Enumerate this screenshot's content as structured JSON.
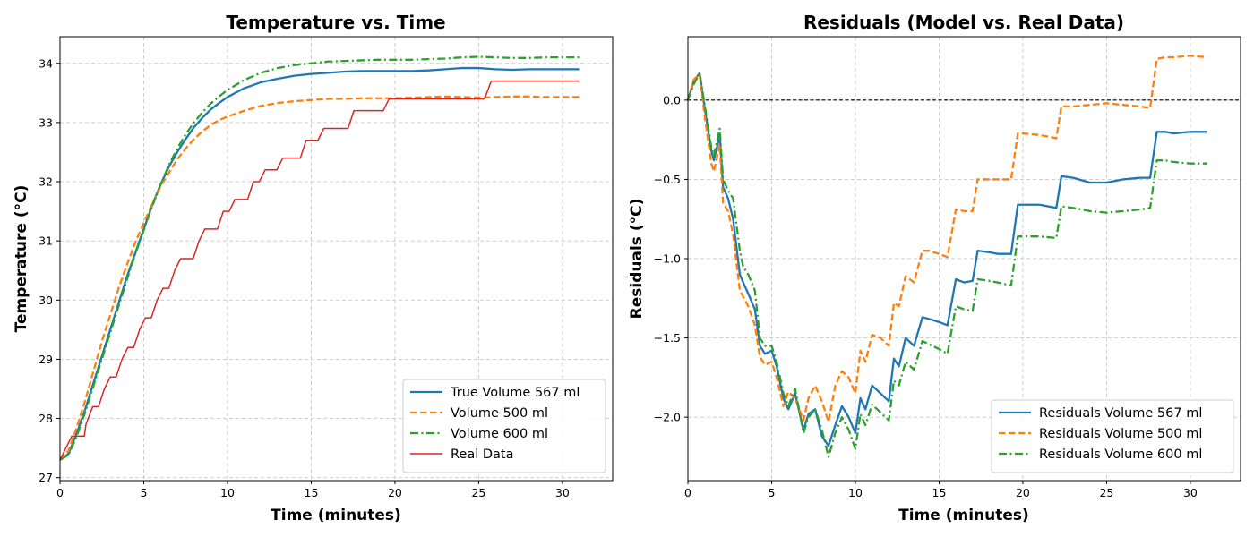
{
  "chart_data": [
    {
      "type": "line",
      "title": "Temperature vs. Time",
      "xlabel": "Time (minutes)",
      "ylabel": "Temperature (°C)",
      "xlim": [
        0,
        33
      ],
      "ylim": [
        26.95,
        34.45
      ],
      "xticks": [
        0,
        5,
        10,
        15,
        20,
        25,
        30
      ],
      "yticks": [
        27,
        28,
        29,
        30,
        31,
        32,
        33,
        34
      ],
      "grid": true,
      "legend_position": "lower-right",
      "series": [
        {
          "name": "True Volume 567 ml",
          "color": "#1f77b4",
          "style": "solid",
          "x": [
            0,
            0.5,
            1,
            1.5,
            2,
            2.5,
            3,
            3.5,
            4,
            4.5,
            5,
            5.5,
            6,
            6.5,
            7,
            7.5,
            8,
            8.5,
            9,
            9.5,
            10,
            11,
            12,
            13,
            14,
            15,
            16,
            17,
            18,
            19,
            20,
            21,
            22,
            23,
            24,
            25,
            26,
            27,
            28,
            29,
            30,
            31
          ],
          "y": [
            27.3,
            27.4,
            27.75,
            28.15,
            28.6,
            29.05,
            29.5,
            29.95,
            30.4,
            30.8,
            31.2,
            31.6,
            31.95,
            32.25,
            32.5,
            32.72,
            32.92,
            33.08,
            33.22,
            33.33,
            33.43,
            33.58,
            33.68,
            33.74,
            33.79,
            33.82,
            33.84,
            33.86,
            33.87,
            33.87,
            33.87,
            33.87,
            33.88,
            33.9,
            33.92,
            33.92,
            33.9,
            33.89,
            33.9,
            33.9,
            33.9,
            33.9
          ]
        },
        {
          "name": "Volume 500 ml",
          "color": "#ff7f0e",
          "style": "dashed",
          "x": [
            0,
            0.5,
            1,
            1.5,
            2,
            2.5,
            3,
            3.5,
            4,
            4.5,
            5,
            5.5,
            6,
            6.5,
            7,
            7.5,
            8,
            8.5,
            9,
            9.5,
            10,
            11,
            12,
            13,
            14,
            15,
            16,
            17,
            18,
            19,
            20,
            21,
            22,
            23,
            24,
            25,
            26,
            27,
            28,
            29,
            30,
            31
          ],
          "y": [
            27.3,
            27.45,
            27.85,
            28.3,
            28.8,
            29.3,
            29.75,
            30.2,
            30.6,
            30.98,
            31.3,
            31.62,
            31.92,
            32.15,
            32.38,
            32.56,
            32.72,
            32.85,
            32.96,
            33.04,
            33.1,
            33.2,
            33.28,
            33.33,
            33.36,
            33.38,
            33.4,
            33.4,
            33.41,
            33.41,
            33.41,
            33.42,
            33.43,
            33.44,
            33.43,
            33.42,
            33.43,
            33.44,
            33.44,
            33.43,
            33.43,
            33.43
          ]
        },
        {
          "name": "Volume 600 ml",
          "color": "#2ca02c",
          "style": "dashdot",
          "x": [
            0,
            0.5,
            1,
            1.5,
            2,
            2.5,
            3,
            3.5,
            4,
            4.5,
            5,
            5.5,
            6,
            6.5,
            7,
            7.5,
            8,
            8.5,
            9,
            9.5,
            10,
            11,
            12,
            13,
            14,
            15,
            16,
            17,
            18,
            19,
            20,
            21,
            22,
            23,
            24,
            25,
            26,
            27,
            28,
            29,
            30,
            31
          ],
          "y": [
            27.3,
            27.38,
            27.7,
            28.1,
            28.55,
            29.0,
            29.45,
            29.9,
            30.35,
            30.78,
            31.18,
            31.58,
            31.95,
            32.28,
            32.56,
            32.8,
            33.0,
            33.17,
            33.32,
            33.44,
            33.55,
            33.72,
            33.84,
            33.92,
            33.97,
            34.0,
            34.03,
            34.04,
            34.05,
            34.06,
            34.06,
            34.06,
            34.07,
            34.08,
            34.1,
            34.11,
            34.1,
            34.09,
            34.09,
            34.1,
            34.1,
            34.1
          ]
        },
        {
          "name": "Real Data",
          "color": "#d62728",
          "style": "solid-thin",
          "x": [
            0,
            0.7,
            1.45,
            1.55,
            1.95,
            2.3,
            2.65,
            3.0,
            3.35,
            3.7,
            4.05,
            4.4,
            4.75,
            5.1,
            5.45,
            5.8,
            6.15,
            6.5,
            6.85,
            7.2,
            7.6,
            7.95,
            8.3,
            8.65,
            9.05,
            9.4,
            9.75,
            10.1,
            10.45,
            10.85,
            11.2,
            11.55,
            11.9,
            12.25,
            12.6,
            12.95,
            13.3,
            13.65,
            14.0,
            14.35,
            14.7,
            15.05,
            15.4,
            15.75,
            16.1,
            16.5,
            16.85,
            17.2,
            17.55,
            17.9,
            18.25,
            18.6,
            18.95,
            19.3,
            19.65,
            20.05,
            20.4,
            20.75,
            21.1,
            21.45,
            21.8,
            22.15,
            22.55,
            22.9,
            23.25,
            23.6,
            23.95,
            24.3,
            24.65,
            25.0,
            25.35,
            25.75,
            26.1,
            26.45,
            26.8,
            27.15,
            27.5,
            27.85,
            28.2,
            28.55,
            28.9,
            29.25,
            29.6,
            29.95,
            30.3,
            30.65,
            31.0
          ],
          "y": [
            27.3,
            27.7,
            27.7,
            27.9,
            28.2,
            28.2,
            28.5,
            28.7,
            28.7,
            29.0,
            29.2,
            29.2,
            29.5,
            29.7,
            29.7,
            30.0,
            30.2,
            30.2,
            30.5,
            30.7,
            30.7,
            30.7,
            31.0,
            31.2,
            31.2,
            31.2,
            31.5,
            31.5,
            31.7,
            31.7,
            31.7,
            32.0,
            32.0,
            32.2,
            32.2,
            32.2,
            32.4,
            32.4,
            32.4,
            32.4,
            32.7,
            32.7,
            32.7,
            32.9,
            32.9,
            32.9,
            32.9,
            32.9,
            33.2,
            33.2,
            33.2,
            33.2,
            33.2,
            33.2,
            33.4,
            33.4,
            33.4,
            33.4,
            33.4,
            33.4,
            33.4,
            33.4,
            33.4,
            33.4,
            33.4,
            33.4,
            33.4,
            33.4,
            33.4,
            33.4,
            33.4,
            33.7,
            33.7,
            33.7,
            33.7,
            33.7,
            33.7,
            33.7,
            33.7,
            33.7,
            33.7,
            33.7,
            33.7,
            33.7,
            33.7,
            33.7,
            33.7
          ]
        }
      ]
    },
    {
      "type": "line",
      "title": "Residuals (Model vs. Real Data)",
      "xlabel": "Time (minutes)",
      "ylabel": "Residuals (°C)",
      "xlim": [
        0,
        33
      ],
      "ylim": [
        -2.4,
        0.4
      ],
      "xticks": [
        0,
        5,
        10,
        15,
        20,
        25,
        30
      ],
      "yticks": [
        -2.0,
        -1.5,
        -1.0,
        -0.5,
        0.0
      ],
      "ytick_labels": [
        "−2.0",
        "−1.5",
        "−1.0",
        "−0.5",
        "0.0"
      ],
      "reference_line": 0.0,
      "grid": true,
      "legend_position": "lower-right",
      "series": [
        {
          "name": "Residuals Volume 567 ml",
          "color": "#1f77b4",
          "style": "solid",
          "x": [
            0,
            0.35,
            0.7,
            1.0,
            1.4,
            1.55,
            1.9,
            2.1,
            2.4,
            2.7,
            3.1,
            3.3,
            3.6,
            4.0,
            4.3,
            4.6,
            5.0,
            5.3,
            5.7,
            6.0,
            6.4,
            6.9,
            7.2,
            7.6,
            8.0,
            8.4,
            8.8,
            9.2,
            9.6,
            10.0,
            10.3,
            10.6,
            11.0,
            11.5,
            12.0,
            12.3,
            12.6,
            13.0,
            13.5,
            14.0,
            14.4,
            15.0,
            15.5,
            16.0,
            16.5,
            17.0,
            17.3,
            18.0,
            18.5,
            19.3,
            19.7,
            20.0,
            21.0,
            22.0,
            22.3,
            23.0,
            24.0,
            25.0,
            26.0,
            27.0,
            27.6,
            28.0,
            28.5,
            29.0,
            30.0,
            31.0
          ],
          "y": [
            0.0,
            0.12,
            0.17,
            -0.05,
            -0.32,
            -0.38,
            -0.22,
            -0.55,
            -0.62,
            -0.75,
            -1.1,
            -1.15,
            -1.22,
            -1.32,
            -1.55,
            -1.6,
            -1.58,
            -1.68,
            -1.88,
            -1.95,
            -1.85,
            -2.08,
            -1.98,
            -1.95,
            -2.12,
            -2.18,
            -2.05,
            -1.93,
            -2.0,
            -2.1,
            -1.88,
            -1.95,
            -1.8,
            -1.85,
            -1.9,
            -1.63,
            -1.68,
            -1.5,
            -1.55,
            -1.37,
            -1.38,
            -1.4,
            -1.42,
            -1.13,
            -1.15,
            -1.14,
            -0.95,
            -0.96,
            -0.97,
            -0.97,
            -0.66,
            -0.66,
            -0.66,
            -0.68,
            -0.48,
            -0.49,
            -0.52,
            -0.52,
            -0.5,
            -0.49,
            -0.49,
            -0.2,
            -0.2,
            -0.21,
            -0.2,
            -0.2
          ]
        },
        {
          "name": "Residuals Volume 500 ml",
          "color": "#ff7f0e",
          "style": "dashed",
          "x": [
            0,
            0.35,
            0.7,
            1.0,
            1.4,
            1.55,
            1.9,
            2.1,
            2.4,
            2.7,
            3.1,
            3.3,
            3.6,
            4.0,
            4.3,
            4.6,
            5.0,
            5.3,
            5.7,
            6.0,
            6.4,
            6.9,
            7.2,
            7.6,
            8.0,
            8.4,
            8.8,
            9.2,
            9.6,
            10.0,
            10.3,
            10.6,
            11.0,
            11.5,
            12.0,
            12.3,
            12.6,
            13.0,
            13.5,
            14.0,
            14.4,
            15.0,
            15.5,
            16.0,
            16.5,
            17.0,
            17.3,
            18.0,
            18.5,
            19.3,
            19.7,
            20.0,
            21.0,
            22.0,
            22.3,
            23.0,
            24.0,
            25.0,
            26.0,
            27.0,
            27.6,
            28.0,
            28.5,
            29.0,
            30.0,
            31.0
          ],
          "y": [
            0.0,
            0.13,
            0.16,
            -0.1,
            -0.4,
            -0.45,
            -0.28,
            -0.65,
            -0.7,
            -0.85,
            -1.2,
            -1.24,
            -1.3,
            -1.42,
            -1.62,
            -1.67,
            -1.65,
            -1.75,
            -1.93,
            -1.84,
            -1.88,
            -2.02,
            -1.88,
            -1.8,
            -1.9,
            -2.03,
            -1.8,
            -1.71,
            -1.75,
            -1.85,
            -1.58,
            -1.65,
            -1.48,
            -1.5,
            -1.55,
            -1.28,
            -1.3,
            -1.11,
            -1.15,
            -0.95,
            -0.95,
            -0.97,
            -0.99,
            -0.69,
            -0.7,
            -0.7,
            -0.5,
            -0.5,
            -0.5,
            -0.5,
            -0.21,
            -0.21,
            -0.22,
            -0.24,
            -0.04,
            -0.04,
            -0.03,
            -0.02,
            -0.03,
            -0.04,
            -0.05,
            0.26,
            0.27,
            0.27,
            0.28,
            0.27
          ]
        },
        {
          "name": "Residuals Volume 600 ml",
          "color": "#2ca02c",
          "style": "dashdot",
          "x": [
            0,
            0.35,
            0.7,
            1.0,
            1.4,
            1.55,
            1.9,
            2.1,
            2.4,
            2.7,
            3.1,
            3.3,
            3.6,
            4.0,
            4.3,
            4.6,
            5.0,
            5.3,
            5.7,
            6.0,
            6.4,
            6.9,
            7.2,
            7.6,
            8.0,
            8.4,
            8.8,
            9.2,
            9.6,
            10.0,
            10.3,
            10.6,
            11.0,
            11.5,
            12.0,
            12.3,
            12.6,
            13.0,
            13.5,
            14.0,
            14.4,
            15.0,
            15.5,
            16.0,
            16.5,
            17.0,
            17.3,
            18.0,
            18.5,
            19.3,
            19.7,
            20.0,
            21.0,
            22.0,
            22.3,
            23.0,
            24.0,
            25.0,
            26.0,
            27.0,
            27.6,
            28.0,
            28.5,
            29.0,
            30.0,
            31.0
          ],
          "y": [
            0.0,
            0.1,
            0.17,
            -0.03,
            -0.3,
            -0.35,
            -0.18,
            -0.5,
            -0.57,
            -0.62,
            -0.95,
            -1.05,
            -1.1,
            -1.2,
            -1.5,
            -1.55,
            -1.55,
            -1.65,
            -1.85,
            -1.93,
            -1.82,
            -2.1,
            -2.0,
            -1.95,
            -2.08,
            -2.25,
            -2.1,
            -2.0,
            -2.08,
            -2.2,
            -1.98,
            -2.05,
            -1.92,
            -1.97,
            -2.02,
            -1.77,
            -1.8,
            -1.65,
            -1.7,
            -1.52,
            -1.54,
            -1.57,
            -1.6,
            -1.3,
            -1.32,
            -1.33,
            -1.13,
            -1.14,
            -1.15,
            -1.17,
            -0.86,
            -0.86,
            -0.86,
            -0.87,
            -0.67,
            -0.68,
            -0.7,
            -0.71,
            -0.7,
            -0.69,
            -0.68,
            -0.38,
            -0.38,
            -0.39,
            -0.4,
            -0.4
          ]
        }
      ]
    }
  ]
}
